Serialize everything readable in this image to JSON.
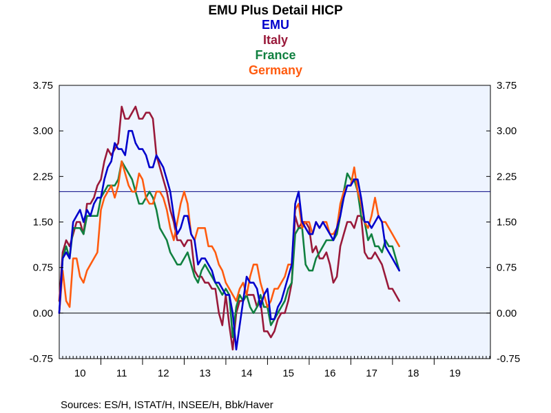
{
  "chart_data": {
    "type": "line",
    "title": "EMU Plus Detail HICP",
    "source": "Sources:  ES/H, ISTAT/H, INSEE/H, Bbk/Haver",
    "ylim": [
      -0.75,
      3.75
    ],
    "yticks": [
      "-0.75",
      "0.00",
      "0.75",
      "1.50",
      "2.25",
      "3.00",
      "3.75"
    ],
    "ytick_values": [
      -0.75,
      0,
      0.75,
      1.5,
      2.25,
      3.0,
      3.75
    ],
    "xlim": [
      2009.5,
      2019.85
    ],
    "xtick_labels": [
      "10",
      "11",
      "12",
      "13",
      "14",
      "15",
      "16",
      "17",
      "18",
      "19"
    ],
    "xtick_values": [
      2010,
      2011,
      2012,
      2013,
      2014,
      2015,
      2016,
      2017,
      2018,
      2019
    ],
    "reference_lines": [
      0,
      2.0
    ],
    "grid": false,
    "series": [
      {
        "name": "EMU",
        "color": "#0000cc",
        "x_start": 2009.5,
        "step": 0.0833,
        "values": [
          0.0,
          0.9,
          1.0,
          0.9,
          1.5,
          1.6,
          1.7,
          1.5,
          1.7,
          1.6,
          1.8,
          1.9,
          1.9,
          2.2,
          2.4,
          2.5,
          2.8,
          2.7,
          2.7,
          2.6,
          3.0,
          3.0,
          2.8,
          2.7,
          2.7,
          2.6,
          2.4,
          2.4,
          2.6,
          2.5,
          2.4,
          2.2,
          2.0,
          1.6,
          1.3,
          1.4,
          1.6,
          1.6,
          1.3,
          1.2,
          0.8,
          0.9,
          0.9,
          0.8,
          0.7,
          0.5,
          0.5,
          0.4,
          0.3,
          0.3,
          0.0,
          -0.6,
          -0.2,
          0.2,
          0.6,
          0.5,
          0.5,
          0.4,
          0.1,
          0.3,
          0.4,
          -0.1,
          -0.1,
          0.1,
          0.2,
          0.4,
          0.6,
          0.8,
          1.8,
          2.0,
          1.5,
          1.4,
          1.3,
          1.3,
          1.5,
          1.4,
          1.5,
          1.4,
          1.3,
          1.2,
          1.4,
          1.6,
          1.9,
          2.1,
          2.1,
          2.2,
          2.2,
          1.9,
          1.5,
          1.5,
          1.4,
          1.5,
          1.6,
          1.5,
          1.1,
          1.0,
          0.9,
          0.8,
          0.7
        ]
      },
      {
        "name": "Italy",
        "color": "#99193a",
        "x_start": 2009.5,
        "step": 0.0833,
        "values": [
          0.2,
          1.0,
          1.2,
          1.1,
          1.3,
          1.5,
          1.5,
          1.3,
          1.8,
          1.8,
          1.9,
          2.1,
          2.2,
          2.5,
          2.7,
          2.6,
          2.7,
          2.8,
          3.4,
          3.2,
          3.2,
          3.3,
          3.4,
          3.2,
          3.2,
          3.3,
          3.3,
          3.2,
          2.6,
          2.4,
          2.2,
          2.0,
          1.7,
          1.5,
          1.2,
          1.2,
          1.1,
          1.2,
          1.2,
          0.7,
          0.6,
          0.6,
          0.5,
          0.5,
          0.4,
          0.4,
          0.0,
          -0.2,
          0.3,
          -0.2,
          -0.6,
          0.0,
          0.2,
          0.2,
          0.3,
          0.3,
          0.3,
          0.1,
          0.2,
          -0.3,
          -0.3,
          -0.4,
          -0.3,
          -0.1,
          0.0,
          0.0,
          0.2,
          0.5,
          1.6,
          1.4,
          1.5,
          1.5,
          1.4,
          1.0,
          1.1,
          0.9,
          0.9,
          1.0,
          0.8,
          0.5,
          0.6,
          1.1,
          1.3,
          1.5,
          1.5,
          1.4,
          1.6,
          1.6,
          1.0,
          0.9,
          0.9,
          1.0,
          0.9,
          0.8,
          0.6,
          0.4,
          0.4,
          0.3,
          0.2
        ]
      },
      {
        "name": "France",
        "color": "#108040",
        "x_start": 2009.5,
        "step": 0.0833,
        "values": [
          0.0,
          0.9,
          1.1,
          0.9,
          1.4,
          1.4,
          1.4,
          1.3,
          1.6,
          1.6,
          1.6,
          1.6,
          1.9,
          2.0,
          2.1,
          2.1,
          2.1,
          2.2,
          2.5,
          2.4,
          2.3,
          2.2,
          2.0,
          1.8,
          1.8,
          1.9,
          2.0,
          1.9,
          1.7,
          1.4,
          1.3,
          1.2,
          1.0,
          0.9,
          0.8,
          0.8,
          0.9,
          1.0,
          0.8,
          0.6,
          0.5,
          0.7,
          0.8,
          0.7,
          0.6,
          0.5,
          0.4,
          0.3,
          0.4,
          0.3,
          -0.4,
          0.1,
          0.3,
          0.2,
          0.3,
          0.1,
          0.0,
          0.1,
          0.3,
          0.1,
          0.1,
          -0.2,
          -0.1,
          0.0,
          0.1,
          0.2,
          0.4,
          0.5,
          1.3,
          1.4,
          1.4,
          0.8,
          0.7,
          0.7,
          0.9,
          1.0,
          1.1,
          1.2,
          1.2,
          1.2,
          1.3,
          1.6,
          2.0,
          2.3,
          2.2,
          2.2,
          2.0,
          1.6,
          1.5,
          1.2,
          1.3,
          1.1,
          1.1,
          1.0,
          1.2,
          1.1,
          1.1,
          0.9,
          0.7
        ]
      },
      {
        "name": "Germany",
        "color": "#ff5b0f",
        "x_start": 2009.5,
        "step": 0.0833,
        "values": [
          0.0,
          0.7,
          0.2,
          0.1,
          0.9,
          0.9,
          0.6,
          0.5,
          0.7,
          0.8,
          0.9,
          1.0,
          1.7,
          1.9,
          2.0,
          2.1,
          1.9,
          2.1,
          2.5,
          2.3,
          2.1,
          2.0,
          2.0,
          2.3,
          2.2,
          1.9,
          1.8,
          1.8,
          2.0,
          2.0,
          1.9,
          1.7,
          1.4,
          1.2,
          1.5,
          1.8,
          2.0,
          1.8,
          1.3,
          1.2,
          1.4,
          1.4,
          1.4,
          1.1,
          1.1,
          1.0,
          0.8,
          0.7,
          0.5,
          0.4,
          0.3,
          0.2,
          0.4,
          0.5,
          0.3,
          0.6,
          0.8,
          0.8,
          0.5,
          0.3,
          0.1,
          0.2,
          0.4,
          0.4,
          0.5,
          0.6,
          0.8,
          0.8,
          1.7,
          1.8,
          1.4,
          1.5,
          1.5,
          1.3,
          1.5,
          1.4,
          1.5,
          1.5,
          1.3,
          1.3,
          1.4,
          1.8,
          2.0,
          2.1,
          2.1,
          2.4,
          2.0,
          1.8,
          1.5,
          1.4,
          1.6,
          1.9,
          1.6,
          1.5,
          1.5,
          1.4,
          1.3,
          1.2,
          1.1
        ]
      }
    ]
  }
}
